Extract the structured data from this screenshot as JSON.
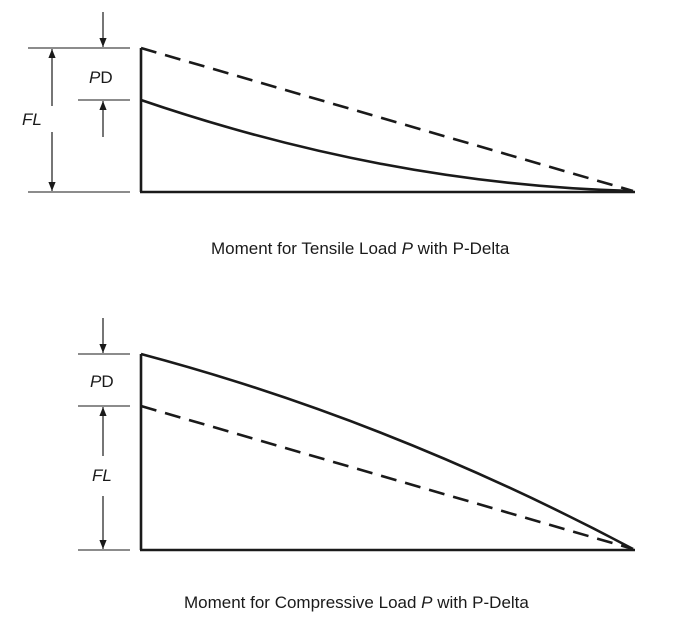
{
  "diagram1": {
    "caption_before": "Moment for Tensile Load ",
    "caption_var": "P",
    "caption_after": " with P-Delta",
    "label_pd_var": "P",
    "label_pd_sym": "D",
    "label_fl": "FL"
  },
  "diagram2": {
    "caption_before": "Moment for Compressive Load ",
    "caption_var": "P",
    "caption_after": " with P-Delta",
    "label_pd_var": "P",
    "label_pd_sym": "D",
    "label_fl": "FL"
  },
  "colors": {
    "line": "#1a1a1a",
    "background": "#ffffff"
  }
}
